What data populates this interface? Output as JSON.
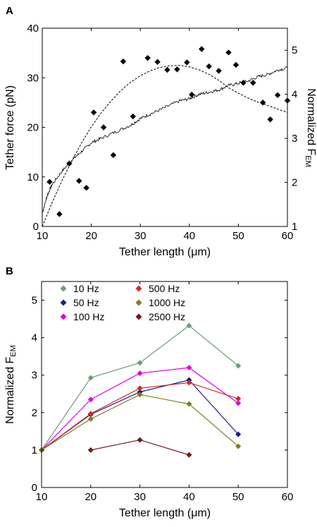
{
  "panels": {
    "a_label": "A",
    "b_label": "B"
  },
  "chart_data": [
    {
      "type": "scatter",
      "title": "",
      "xlabel": "Tether length (μm)",
      "ylabel": "Tether force (pN)",
      "ylabel_right": "Normalized F",
      "ylabel_right_sub": "EM",
      "xlim": [
        10,
        60
      ],
      "ylim": [
        0,
        40
      ],
      "ylim_right": [
        1,
        5.5
      ],
      "xticks": [
        "10",
        "20",
        "30",
        "40",
        "50",
        "60"
      ],
      "yticks": [
        "0",
        "10",
        "20",
        "30",
        "40"
      ],
      "yticks_right": [
        "1",
        "2",
        "3",
        "4",
        "5"
      ],
      "grid": false,
      "series": [
        {
          "marker": "diamond",
          "color": "#000000",
          "x": [
            11.5,
            13.5,
            15.5,
            17.5,
            19,
            20.5,
            22.5,
            24.5,
            26.5,
            28.5,
            31.5,
            33.5,
            35.5,
            37.5,
            39.5,
            40.5,
            42.5,
            44,
            46,
            48,
            49.5,
            51,
            53,
            55,
            56.5,
            58,
            60
          ],
          "y": [
            9,
            2.5,
            12.7,
            9.2,
            7.8,
            23,
            20,
            14.4,
            33.3,
            22.2,
            34,
            33.2,
            31.6,
            31.7,
            33.1,
            26.6,
            35.8,
            32.3,
            31.4,
            35.1,
            32.6,
            29,
            29,
            25,
            21.6,
            26.5,
            25.4
          ]
        },
        {
          "style": "dashed-fit",
          "color": "#000000",
          "x": [
            10,
            12,
            14,
            16,
            18,
            20,
            22,
            24,
            26,
            28,
            30,
            32,
            34,
            36,
            38,
            40,
            42,
            44,
            46,
            48,
            50,
            52,
            54,
            56,
            58,
            60
          ],
          "y": [
            0,
            4.8,
            9.2,
            13.2,
            16.8,
            20.1,
            22.9,
            25.3,
            27.4,
            29.1,
            30.4,
            31.4,
            32.1,
            32.4,
            32.5,
            32.2,
            31.6,
            30.7,
            29.5,
            28.0,
            26.9,
            25.9,
            25.1,
            24.4,
            23.7,
            23.0
          ]
        },
        {
          "style": "solid-noisy",
          "axis": "right",
          "color": "#000000",
          "x": [
            10,
            11,
            12,
            14,
            16,
            18,
            20,
            22,
            25,
            28,
            30,
            32,
            35,
            38,
            40,
            42,
            44,
            46,
            48,
            50,
            52,
            54,
            56,
            58,
            60
          ],
          "y": [
            1.3,
            1.7,
            1.95,
            2.25,
            2.5,
            2.7,
            2.9,
            3.0,
            3.15,
            3.3,
            3.45,
            3.55,
            3.7,
            3.85,
            3.9,
            4.0,
            4.05,
            4.1,
            4.2,
            4.25,
            4.3,
            4.4,
            4.45,
            4.55,
            4.6
          ]
        }
      ]
    },
    {
      "type": "line",
      "title": "",
      "xlabel": "Tether length (μm)",
      "ylabel": "Normalized F",
      "ylabel_sub": "EM",
      "xlim": [
        10,
        60
      ],
      "ylim": [
        0,
        5.5
      ],
      "xticks": [
        "10",
        "20",
        "30",
        "40",
        "50",
        "60"
      ],
      "yticks": [
        "0",
        "1",
        "2",
        "3",
        "4",
        "5"
      ],
      "grid": false,
      "legend_position": "top-left",
      "series": [
        {
          "name": "10 Hz",
          "color": "#6a9e76",
          "x": [
            10,
            20,
            30,
            40,
            50
          ],
          "y": [
            1.0,
            2.93,
            3.33,
            4.32,
            3.25
          ]
        },
        {
          "name": "50 Hz",
          "color": "#1f1a80",
          "x": [
            10,
            20,
            30,
            40,
            50
          ],
          "y": [
            1.0,
            1.95,
            2.55,
            2.87,
            1.42
          ]
        },
        {
          "name": "100 Hz",
          "color": "#e000e0",
          "x": [
            10,
            20,
            30,
            40,
            50
          ],
          "y": [
            1.0,
            2.35,
            3.05,
            3.2,
            2.25
          ]
        },
        {
          "name": "500 Hz",
          "color": "#d42828",
          "x": [
            10,
            20,
            30,
            40,
            50
          ],
          "y": [
            1.0,
            1.97,
            2.65,
            2.8,
            2.37
          ]
        },
        {
          "name": "1000 Hz",
          "color": "#7c7c22",
          "x": [
            10,
            20,
            30,
            40,
            50
          ],
          "y": [
            1.0,
            1.83,
            2.48,
            2.23,
            1.1
          ]
        },
        {
          "name": "2500 Hz",
          "color": "#6e1a1a",
          "x": [
            20,
            30,
            40
          ],
          "y": [
            1.0,
            1.27,
            0.87
          ]
        }
      ]
    }
  ]
}
